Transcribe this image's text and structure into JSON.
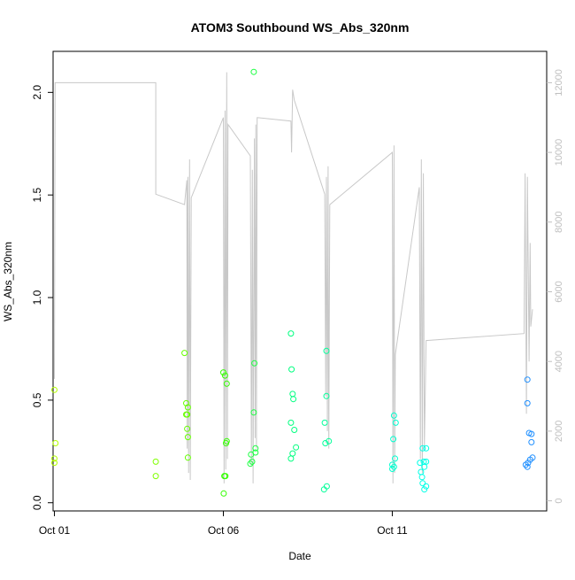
{
  "chart_data": {
    "type": "scatter",
    "title": "ATOM3 Southbound WS_Abs_320nm",
    "xlabel": "Date",
    "ylabel": "WS_Abs_320nm",
    "x_unit": "days (Oct)",
    "xlim": [
      0.96,
      15.57
    ],
    "ylim": [
      -0.04,
      2.2
    ],
    "x_ticks": [
      {
        "value": 1,
        "label": "Oct 01"
      },
      {
        "value": 6,
        "label": "Oct 06"
      },
      {
        "value": 11,
        "label": "Oct 11"
      }
    ],
    "y_ticks": [
      0.0,
      0.5,
      1.0,
      1.5,
      2.0
    ],
    "y2_ticks": [
      0,
      2000,
      4000,
      6000,
      8000,
      10000,
      12000
    ],
    "y2lim": [
      -290,
      12900
    ],
    "grid": false,
    "colors": {
      "altitude_line": "#c8c8c8",
      "axis": "#000000",
      "secondary_axis": "#bfbfbf"
    },
    "points": [
      {
        "x": 1.0,
        "y": 0.55,
        "color": "#b3ff00"
      },
      {
        "x": 1.03,
        "y": 0.29,
        "color": "#b3ff00"
      },
      {
        "x": 1.0,
        "y": 0.215,
        "color": "#b3ff00"
      },
      {
        "x": 1.0,
        "y": 0.195,
        "color": "#b3ff00"
      },
      {
        "x": 4.0,
        "y": 0.2,
        "color": "#80ff00"
      },
      {
        "x": 4.0,
        "y": 0.13,
        "color": "#80ff00"
      },
      {
        "x": 4.85,
        "y": 0.73,
        "color": "#66ff00"
      },
      {
        "x": 4.9,
        "y": 0.485,
        "color": "#66ff00"
      },
      {
        "x": 4.95,
        "y": 0.465,
        "color": "#66ff00"
      },
      {
        "x": 4.9,
        "y": 0.43,
        "color": "#66ff00"
      },
      {
        "x": 4.93,
        "y": 0.43,
        "color": "#66ff00"
      },
      {
        "x": 4.93,
        "y": 0.36,
        "color": "#66ff00"
      },
      {
        "x": 4.95,
        "y": 0.32,
        "color": "#66ff00"
      },
      {
        "x": 4.95,
        "y": 0.22,
        "color": "#66ff00"
      },
      {
        "x": 6.0,
        "y": 0.635,
        "color": "#33ff00"
      },
      {
        "x": 6.05,
        "y": 0.62,
        "color": "#33ff00"
      },
      {
        "x": 6.1,
        "y": 0.58,
        "color": "#33ff00"
      },
      {
        "x": 6.1,
        "y": 0.3,
        "color": "#33ff00"
      },
      {
        "x": 6.08,
        "y": 0.29,
        "color": "#33ff00"
      },
      {
        "x": 6.03,
        "y": 0.13,
        "color": "#33ff00"
      },
      {
        "x": 6.06,
        "y": 0.13,
        "color": "#33ff00"
      },
      {
        "x": 6.01,
        "y": 0.045,
        "color": "#33ff00"
      },
      {
        "x": 6.9,
        "y": 2.1,
        "color": "#1aff40"
      },
      {
        "x": 6.92,
        "y": 0.68,
        "color": "#1aff40"
      },
      {
        "x": 6.9,
        "y": 0.44,
        "color": "#1aff40"
      },
      {
        "x": 6.95,
        "y": 0.265,
        "color": "#1aff40"
      },
      {
        "x": 6.95,
        "y": 0.245,
        "color": "#1aff40"
      },
      {
        "x": 6.82,
        "y": 0.235,
        "color": "#1aff40"
      },
      {
        "x": 6.85,
        "y": 0.2,
        "color": "#1aff40"
      },
      {
        "x": 6.8,
        "y": 0.19,
        "color": "#1aff40"
      },
      {
        "x": 8.0,
        "y": 0.825,
        "color": "#00ff80"
      },
      {
        "x": 8.02,
        "y": 0.65,
        "color": "#00ff80"
      },
      {
        "x": 8.05,
        "y": 0.53,
        "color": "#00ff80"
      },
      {
        "x": 8.07,
        "y": 0.505,
        "color": "#00ff80"
      },
      {
        "x": 8.0,
        "y": 0.39,
        "color": "#00ff80"
      },
      {
        "x": 8.1,
        "y": 0.355,
        "color": "#00ff80"
      },
      {
        "x": 8.15,
        "y": 0.27,
        "color": "#00ff80"
      },
      {
        "x": 8.05,
        "y": 0.24,
        "color": "#00ff80"
      },
      {
        "x": 8.0,
        "y": 0.215,
        "color": "#00ff80"
      },
      {
        "x": 9.05,
        "y": 0.74,
        "color": "#00ff99"
      },
      {
        "x": 9.05,
        "y": 0.52,
        "color": "#00ff99"
      },
      {
        "x": 9.0,
        "y": 0.39,
        "color": "#00ff99"
      },
      {
        "x": 9.02,
        "y": 0.29,
        "color": "#00ff99"
      },
      {
        "x": 9.12,
        "y": 0.3,
        "color": "#00ff99"
      },
      {
        "x": 9.06,
        "y": 0.08,
        "color": "#00ff99"
      },
      {
        "x": 8.98,
        "y": 0.065,
        "color": "#00ff99"
      },
      {
        "x": 11.05,
        "y": 0.425,
        "color": "#00ffd0"
      },
      {
        "x": 11.1,
        "y": 0.39,
        "color": "#00ffd0"
      },
      {
        "x": 11.03,
        "y": 0.31,
        "color": "#00ffd0"
      },
      {
        "x": 11.08,
        "y": 0.215,
        "color": "#00ffd0"
      },
      {
        "x": 11.0,
        "y": 0.185,
        "color": "#00ffd0"
      },
      {
        "x": 11.05,
        "y": 0.175,
        "color": "#00ffd0"
      },
      {
        "x": 11.0,
        "y": 0.165,
        "color": "#00ffd0"
      },
      {
        "x": 11.82,
        "y": 0.195,
        "color": "#00ffe6"
      },
      {
        "x": 11.9,
        "y": 0.265,
        "color": "#00ffe6"
      },
      {
        "x": 12.0,
        "y": 0.265,
        "color": "#00ffe6"
      },
      {
        "x": 11.93,
        "y": 0.2,
        "color": "#00ffe6"
      },
      {
        "x": 12.0,
        "y": 0.2,
        "color": "#00ffe6"
      },
      {
        "x": 11.95,
        "y": 0.175,
        "color": "#00ffe6"
      },
      {
        "x": 11.85,
        "y": 0.15,
        "color": "#00ffe6"
      },
      {
        "x": 11.88,
        "y": 0.125,
        "color": "#00ffe6"
      },
      {
        "x": 11.9,
        "y": 0.095,
        "color": "#00ffe6"
      },
      {
        "x": 12.0,
        "y": 0.08,
        "color": "#00ffe6"
      },
      {
        "x": 11.95,
        "y": 0.065,
        "color": "#00ffe6"
      },
      {
        "x": 15.0,
        "y": 0.6,
        "color": "#1f8fff"
      },
      {
        "x": 15.0,
        "y": 0.485,
        "color": "#1f8fff"
      },
      {
        "x": 15.05,
        "y": 0.34,
        "color": "#1f8fff"
      },
      {
        "x": 15.12,
        "y": 0.335,
        "color": "#1f8fff"
      },
      {
        "x": 15.12,
        "y": 0.295,
        "color": "#1f8fff"
      },
      {
        "x": 15.15,
        "y": 0.22,
        "color": "#1f8fff"
      },
      {
        "x": 15.08,
        "y": 0.21,
        "color": "#1f8fff"
      },
      {
        "x": 15.02,
        "y": 0.195,
        "color": "#1f8fff"
      },
      {
        "x": 14.95,
        "y": 0.185,
        "color": "#1f8fff"
      },
      {
        "x": 15.0,
        "y": 0.175,
        "color": "#1f8fff"
      }
    ],
    "altitude_series": [
      [
        1.0,
        3800
      ],
      [
        1.0,
        4000
      ],
      [
        1.0,
        3500
      ],
      [
        1.02,
        12000
      ],
      [
        4.0,
        12000
      ],
      [
        4.0,
        8800
      ],
      [
        4.85,
        8500
      ],
      [
        4.92,
        9200
      ],
      [
        4.93,
        1500
      ],
      [
        4.95,
        9300
      ],
      [
        4.97,
        800
      ],
      [
        5.0,
        9800
      ],
      [
        5.02,
        600
      ],
      [
        5.05,
        8700
      ],
      [
        6.0,
        11000
      ],
      [
        6.02,
        500
      ],
      [
        6.05,
        11200
      ],
      [
        6.07,
        900
      ],
      [
        6.1,
        12300
      ],
      [
        6.12,
        1200
      ],
      [
        6.14,
        10800
      ],
      [
        6.8,
        9900
      ],
      [
        6.83,
        1000
      ],
      [
        6.86,
        9500
      ],
      [
        6.88,
        500
      ],
      [
        6.92,
        10400
      ],
      [
        6.94,
        1800
      ],
      [
        6.96,
        10800
      ],
      [
        6.98,
        1500
      ],
      [
        7.0,
        11000
      ],
      [
        8.0,
        10900
      ],
      [
        8.02,
        10000
      ],
      [
        8.05,
        11800
      ],
      [
        8.1,
        11500
      ],
      [
        9.0,
        8800
      ],
      [
        9.03,
        3000
      ],
      [
        9.05,
        9300
      ],
      [
        9.08,
        2000
      ],
      [
        9.1,
        9600
      ],
      [
        9.12,
        1500
      ],
      [
        9.15,
        8500
      ],
      [
        11.0,
        10000
      ],
      [
        11.02,
        500
      ],
      [
        11.05,
        10200
      ],
      [
        11.07,
        800
      ],
      [
        11.09,
        4200
      ],
      [
        11.8,
        9000
      ],
      [
        11.83,
        1200
      ],
      [
        11.86,
        9800
      ],
      [
        11.89,
        800
      ],
      [
        11.92,
        9400
      ],
      [
        11.95,
        1500
      ],
      [
        12.0,
        4600
      ],
      [
        14.9,
        4800
      ],
      [
        14.93,
        9400
      ],
      [
        14.97,
        2500
      ],
      [
        15.0,
        9300
      ],
      [
        15.05,
        4000
      ],
      [
        15.08,
        7400
      ],
      [
        15.1,
        5000
      ],
      [
        15.15,
        5500
      ]
    ]
  }
}
